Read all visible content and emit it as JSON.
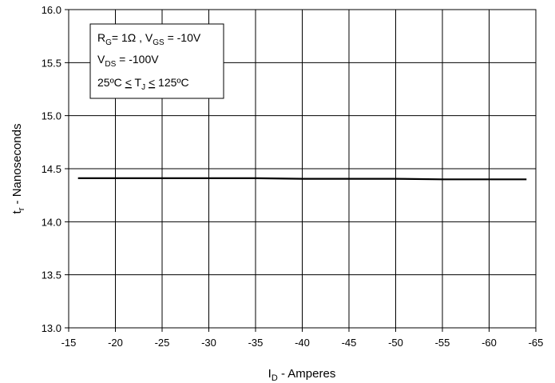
{
  "chart_data": {
    "type": "line",
    "x_axis": {
      "label_main": "I",
      "label_sub": "D",
      "label_rest": " - Amperes",
      "ticks": [
        "-15",
        "-20",
        "-25",
        "-30",
        "-35",
        "-40",
        "-45",
        "-50",
        "-55",
        "-60",
        "-65"
      ],
      "range": [
        -15,
        -65
      ]
    },
    "y_axis": {
      "label_main": "t",
      "label_sub": "r",
      "label_rest": " - Nanoseconds",
      "ticks": [
        "13.0",
        "13.5",
        "14.0",
        "14.5",
        "15.0",
        "15.5",
        "16.0"
      ],
      "range": [
        13.0,
        16.0
      ]
    },
    "grid": true,
    "series": [
      {
        "x": [
          -16,
          -20,
          -25,
          -30,
          -35,
          -40,
          -45,
          -50,
          -55,
          -60,
          -64
        ],
        "y": [
          14.41,
          14.41,
          14.41,
          14.41,
          14.41,
          14.405,
          14.405,
          14.405,
          14.4,
          14.4,
          14.4
        ]
      }
    ],
    "annotation": {
      "line1": {
        "r": "R",
        "r_sub": "G",
        "mid": "= 1Ω , V",
        "v_sub": "GS",
        "end": " = -10V"
      },
      "line2": {
        "v": "V",
        "v_sub": "DS",
        "end": " = -100V"
      },
      "line3": {
        "start": "25ºC ",
        "le1": "<",
        "mid": " T",
        "t_sub": "J",
        "sp": " ",
        "le2": "<",
        "end": " 125ºC"
      }
    }
  }
}
